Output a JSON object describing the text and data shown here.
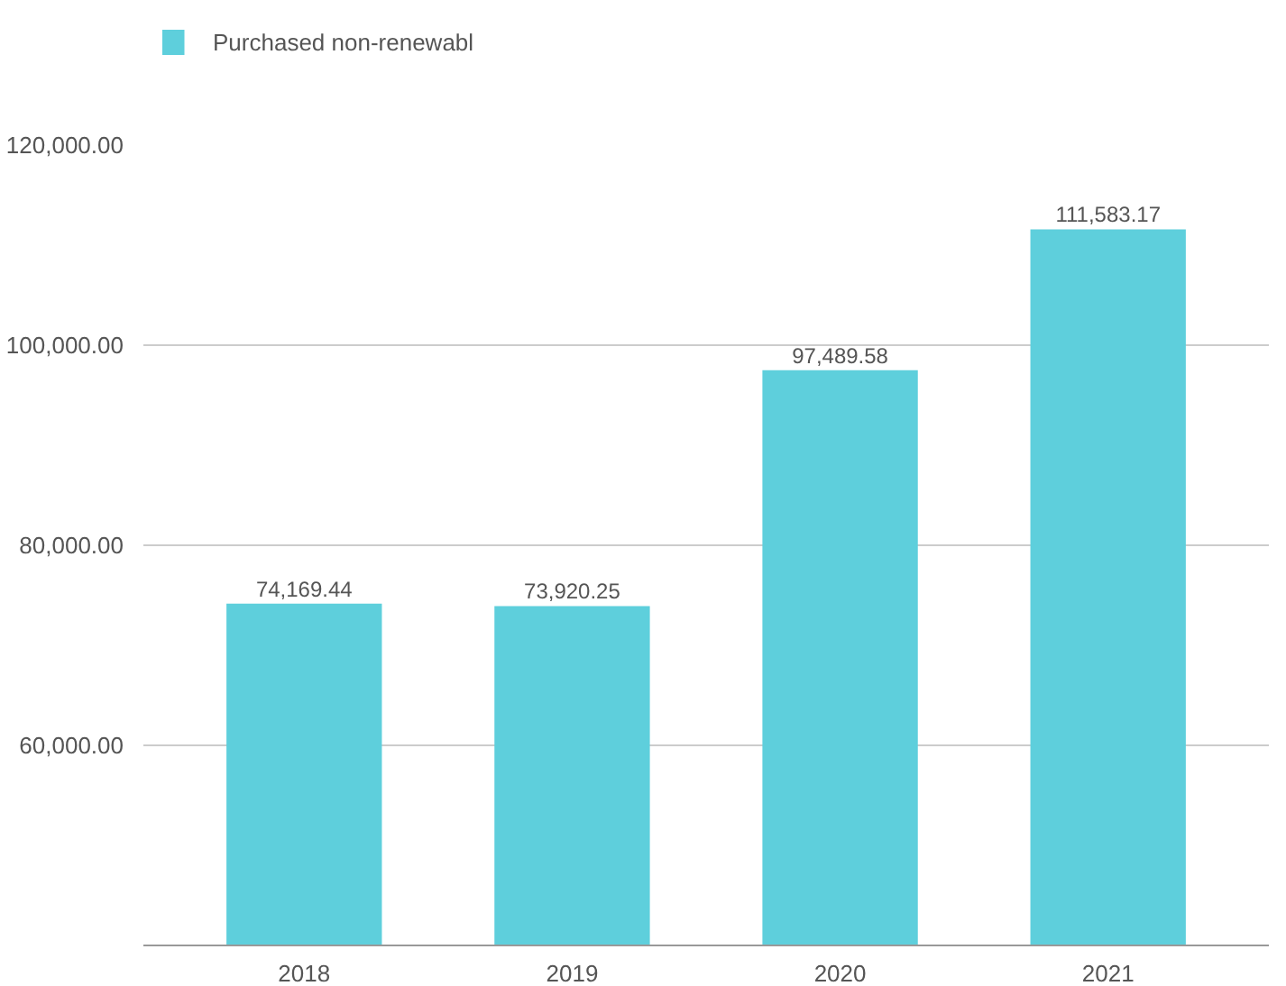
{
  "chart_data": {
    "type": "bar",
    "categories": [
      "2018",
      "2019",
      "2020",
      "2021"
    ],
    "series": [
      {
        "name": "Purchased non-renewabl",
        "color": "#5ecfdc",
        "values": [
          74169.44,
          73920.25,
          97489.58,
          111583.17
        ],
        "value_labels": [
          "74,169.44",
          "73,920.25",
          "97,489.58",
          "111,583.17"
        ]
      }
    ],
    "ylim": [
      40000,
      120000
    ],
    "yticks": [
      {
        "value": 60000,
        "label": "60,000.00"
      },
      {
        "value": 80000,
        "label": "80,000.00"
      },
      {
        "value": 100000,
        "label": "100,000.00"
      },
      {
        "value": 120000,
        "label": "120,000.00"
      }
    ],
    "grid": "y",
    "legend": "top left"
  }
}
